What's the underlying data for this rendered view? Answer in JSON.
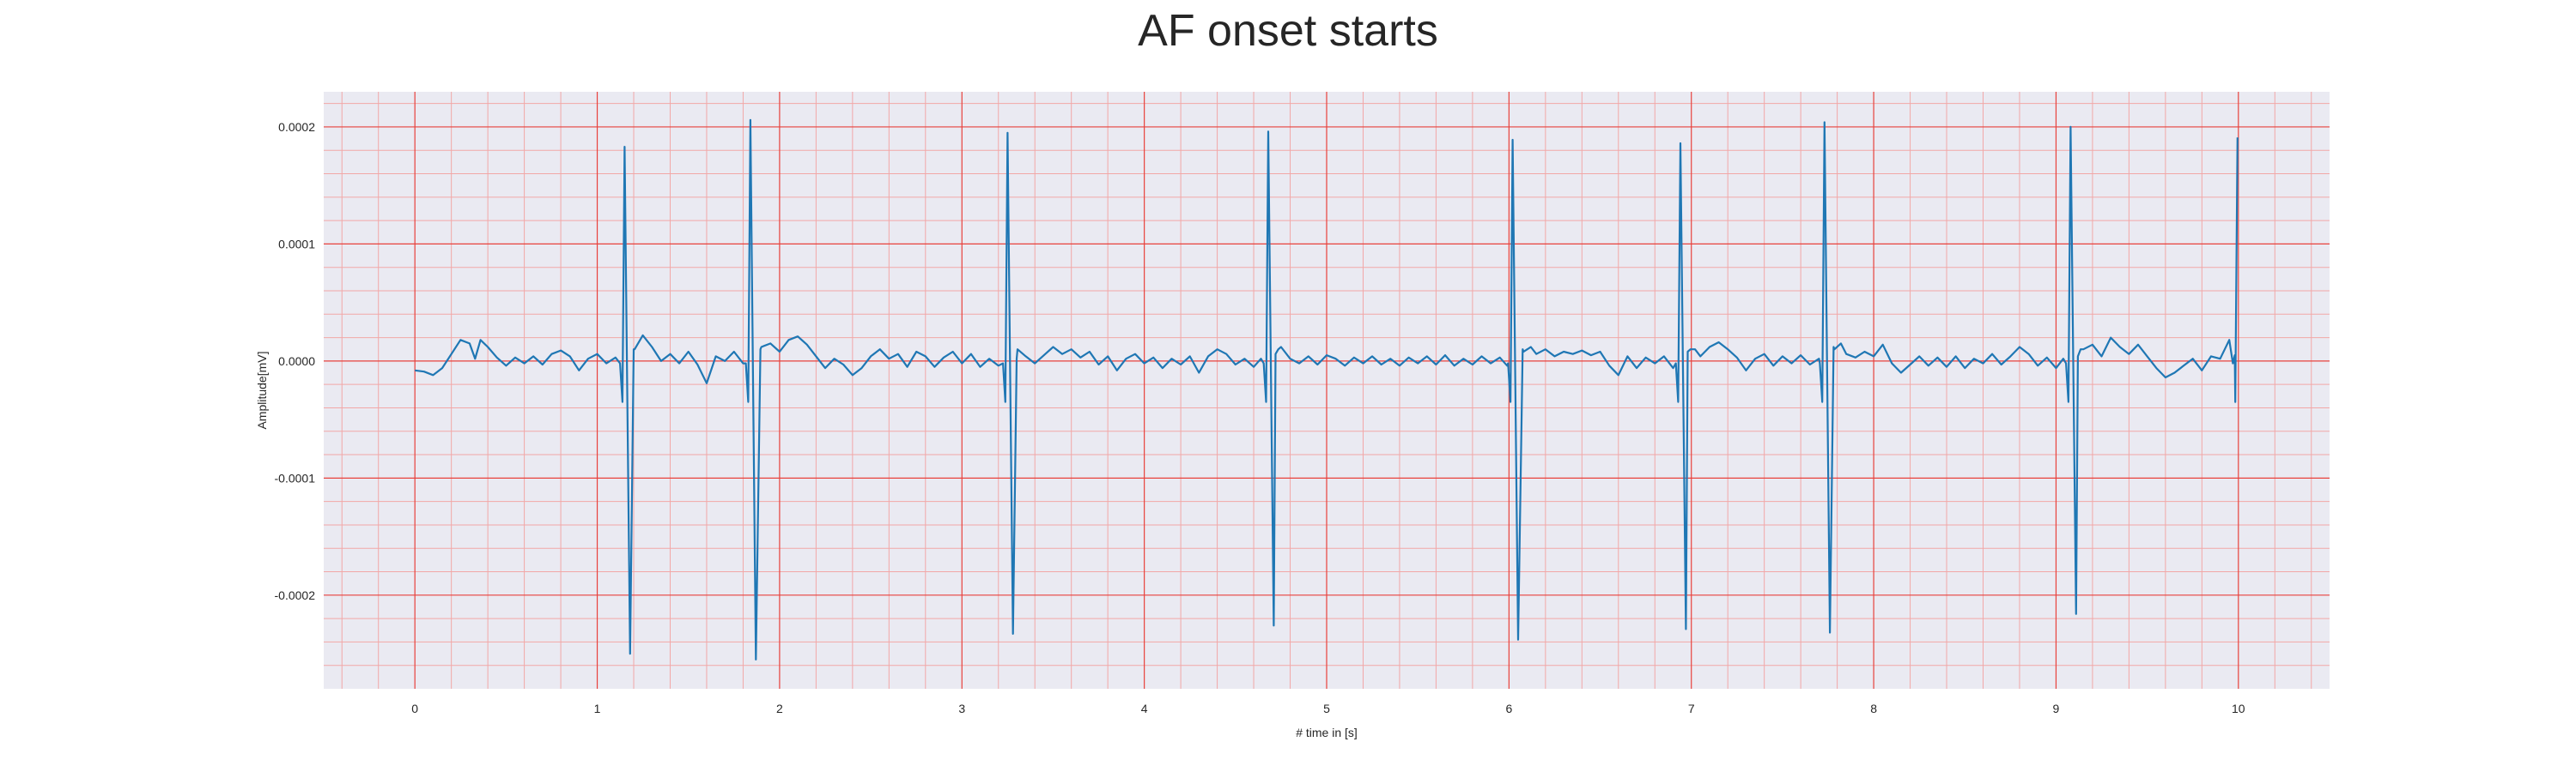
{
  "chart_data": {
    "type": "line",
    "title": "AF onset starts",
    "xlabel": "# time in [s]",
    "ylabel": "Amplitude[mV]",
    "xlim": [
      -0.5,
      10.5
    ],
    "ylim": [
      -0.00028,
      0.00023
    ],
    "xticks": [
      0,
      1,
      2,
      3,
      4,
      5,
      6,
      7,
      8,
      9,
      10
    ],
    "xtick_labels": [
      "0",
      "1",
      "2",
      "3",
      "4",
      "5",
      "6",
      "7",
      "8",
      "9",
      "10"
    ],
    "yticks": [
      -0.0002,
      -0.0001,
      0.0,
      0.0001,
      0.0002
    ],
    "ytick_labels": [
      "-0.0002",
      "-0.0001",
      "0.0000",
      "0.0001",
      "0.0002"
    ],
    "grid": true,
    "grid_major_color": "#e8413c",
    "grid_minor_color": "#f2a7a7",
    "background_color": "#eaeaf2",
    "line_color": "#1f77b4",
    "beats": [
      {
        "t": 1.15,
        "peak": 0.000183,
        "trough": -0.00025
      },
      {
        "t": 1.84,
        "peak": 0.000206,
        "trough": -0.000255
      },
      {
        "t": 3.25,
        "peak": 0.000195,
        "trough": -0.000233
      },
      {
        "t": 4.68,
        "peak": 0.000196,
        "trough": -0.000226
      },
      {
        "t": 6.02,
        "peak": 0.000189,
        "trough": -0.000238
      },
      {
        "t": 6.94,
        "peak": 0.000186,
        "trough": -0.000229
      },
      {
        "t": 7.73,
        "peak": 0.000204,
        "trough": -0.000232
      },
      {
        "t": 9.08,
        "peak": 0.0002,
        "trough": -0.000216
      },
      {
        "t": 9.995,
        "peak": 0.000191,
        "trough": -1e-05
      }
    ],
    "baseline": [
      [
        0.0,
        -8e-06
      ],
      [
        0.05,
        -9e-06
      ],
      [
        0.1,
        -1.2e-05
      ],
      [
        0.15,
        -6e-06
      ],
      [
        0.2,
        6e-06
      ],
      [
        0.25,
        1.8e-05
      ],
      [
        0.3,
        1.5e-05
      ],
      [
        0.33,
        2e-06
      ],
      [
        0.36,
        1.8e-05
      ],
      [
        0.4,
        1.2e-05
      ],
      [
        0.45,
        3e-06
      ],
      [
        0.5,
        -4e-06
      ],
      [
        0.55,
        3e-06
      ],
      [
        0.6,
        -2e-06
      ],
      [
        0.65,
        4e-06
      ],
      [
        0.7,
        -3e-06
      ],
      [
        0.75,
        6e-06
      ],
      [
        0.8,
        9e-06
      ],
      [
        0.85,
        4e-06
      ],
      [
        0.9,
        -8e-06
      ],
      [
        0.95,
        2e-06
      ],
      [
        1.0,
        6e-06
      ],
      [
        1.05,
        -2e-06
      ],
      [
        1.1,
        3e-06
      ],
      [
        1.2,
        1e-05
      ],
      [
        1.25,
        2.2e-05
      ],
      [
        1.3,
        1.2e-05
      ],
      [
        1.35,
        0.0
      ],
      [
        1.4,
        6e-06
      ],
      [
        1.45,
        -2e-06
      ],
      [
        1.5,
        8e-06
      ],
      [
        1.55,
        -3e-06
      ],
      [
        1.6,
        -1.9e-05
      ],
      [
        1.65,
        4e-06
      ],
      [
        1.7,
        0.0
      ],
      [
        1.75,
        8e-06
      ],
      [
        1.8,
        -2e-06
      ],
      [
        1.9,
        1.2e-05
      ],
      [
        1.95,
        1.5e-05
      ],
      [
        2.0,
        8e-06
      ],
      [
        2.05,
        1.8e-05
      ],
      [
        2.1,
        2.1e-05
      ],
      [
        2.15,
        1.4e-05
      ],
      [
        2.2,
        4e-06
      ],
      [
        2.25,
        -6e-06
      ],
      [
        2.3,
        2e-06
      ],
      [
        2.35,
        -3e-06
      ],
      [
        2.4,
        -1.2e-05
      ],
      [
        2.45,
        -6e-06
      ],
      [
        2.5,
        4e-06
      ],
      [
        2.55,
        1e-05
      ],
      [
        2.6,
        2e-06
      ],
      [
        2.65,
        6e-06
      ],
      [
        2.7,
        -5e-06
      ],
      [
        2.75,
        8e-06
      ],
      [
        2.8,
        4e-06
      ],
      [
        2.85,
        -5e-06
      ],
      [
        2.9,
        3e-06
      ],
      [
        2.95,
        8e-06
      ],
      [
        3.0,
        -2e-06
      ],
      [
        3.05,
        6e-06
      ],
      [
        3.1,
        -5e-06
      ],
      [
        3.15,
        2e-06
      ],
      [
        3.2,
        -4e-06
      ],
      [
        3.3,
        2e-06
      ],
      [
        3.35,
        4e-06
      ],
      [
        3.4,
        -2e-06
      ],
      [
        3.45,
        5e-06
      ],
      [
        3.5,
        1.2e-05
      ],
      [
        3.55,
        6e-06
      ],
      [
        3.6,
        1e-05
      ],
      [
        3.65,
        3e-06
      ],
      [
        3.7,
        8e-06
      ],
      [
        3.75,
        -3e-06
      ],
      [
        3.8,
        4e-06
      ],
      [
        3.85,
        -8e-06
      ],
      [
        3.9,
        2e-06
      ],
      [
        3.95,
        6e-06
      ],
      [
        4.0,
        -2e-06
      ],
      [
        4.05,
        3e-06
      ],
      [
        4.1,
        -6e-06
      ],
      [
        4.15,
        2e-06
      ],
      [
        4.2,
        -3e-06
      ],
      [
        4.25,
        4e-06
      ],
      [
        4.3,
        -1e-05
      ],
      [
        4.35,
        4e-06
      ],
      [
        4.4,
        1e-05
      ],
      [
        4.45,
        6e-06
      ],
      [
        4.5,
        -3e-06
      ],
      [
        4.55,
        2e-06
      ],
      [
        4.6,
        -5e-06
      ],
      [
        4.64,
        2e-06
      ],
      [
        4.72,
        6e-06
      ],
      [
        4.75,
        1.2e-05
      ],
      [
        4.8,
        2e-06
      ],
      [
        4.85,
        -2e-06
      ],
      [
        4.9,
        4e-06
      ],
      [
        4.95,
        -3e-06
      ],
      [
        5.0,
        5e-06
      ],
      [
        5.05,
        2e-06
      ],
      [
        5.1,
        -4e-06
      ],
      [
        5.15,
        3e-06
      ],
      [
        5.2,
        -2e-06
      ],
      [
        5.25,
        4e-06
      ],
      [
        5.3,
        -3e-06
      ],
      [
        5.35,
        2e-06
      ],
      [
        5.4,
        -4e-06
      ],
      [
        5.45,
        3e-06
      ],
      [
        5.5,
        -2e-06
      ],
      [
        5.55,
        4e-06
      ],
      [
        5.6,
        -3e-06
      ],
      [
        5.65,
        5e-06
      ],
      [
        5.7,
        -4e-06
      ],
      [
        5.75,
        2e-06
      ],
      [
        5.8,
        -3e-06
      ],
      [
        5.85,
        4e-06
      ],
      [
        5.9,
        -2e-06
      ],
      [
        5.95,
        3e-06
      ],
      [
        5.99,
        -4e-06
      ],
      [
        6.08,
        8e-06
      ],
      [
        6.12,
        1.2e-05
      ],
      [
        6.15,
        6e-06
      ],
      [
        6.2,
        1e-05
      ],
      [
        6.25,
        4e-06
      ],
      [
        6.3,
        8e-06
      ],
      [
        6.35,
        6e-06
      ],
      [
        6.4,
        9e-06
      ],
      [
        6.45,
        5e-06
      ],
      [
        6.5,
        8e-06
      ],
      [
        6.55,
        -4e-06
      ],
      [
        6.6,
        -1.2e-05
      ],
      [
        6.65,
        4e-06
      ],
      [
        6.7,
        -6e-06
      ],
      [
        6.75,
        3e-06
      ],
      [
        6.8,
        -2e-06
      ],
      [
        6.85,
        4e-06
      ],
      [
        6.9,
        -6e-06
      ],
      [
        6.98,
        8e-06
      ],
      [
        7.02,
        1e-05
      ],
      [
        7.05,
        4e-06
      ],
      [
        7.1,
        1.2e-05
      ],
      [
        7.15,
        1.6e-05
      ],
      [
        7.2,
        1e-05
      ],
      [
        7.25,
        3e-06
      ],
      [
        7.3,
        -8e-06
      ],
      [
        7.35,
        2e-06
      ],
      [
        7.4,
        6e-06
      ],
      [
        7.45,
        -4e-06
      ],
      [
        7.5,
        4e-06
      ],
      [
        7.55,
        -2e-06
      ],
      [
        7.6,
        5e-06
      ],
      [
        7.65,
        -3e-06
      ],
      [
        7.7,
        2e-06
      ],
      [
        7.78,
        1.2e-05
      ],
      [
        7.82,
        1.5e-05
      ],
      [
        7.85,
        6e-06
      ],
      [
        7.9,
        3e-06
      ],
      [
        7.95,
        8e-06
      ],
      [
        8.0,
        4e-06
      ],
      [
        8.05,
        1.4e-05
      ],
      [
        8.1,
        -2e-06
      ],
      [
        8.15,
        -1e-05
      ],
      [
        8.2,
        -3e-06
      ],
      [
        8.25,
        4e-06
      ],
      [
        8.3,
        -4e-06
      ],
      [
        8.35,
        3e-06
      ],
      [
        8.4,
        -5e-06
      ],
      [
        8.45,
        4e-06
      ],
      [
        8.5,
        -6e-06
      ],
      [
        8.55,
        2e-06
      ],
      [
        8.6,
        -2e-06
      ],
      [
        8.65,
        6e-06
      ],
      [
        8.7,
        -3e-06
      ],
      [
        8.75,
        4e-06
      ],
      [
        8.8,
        1.2e-05
      ],
      [
        8.85,
        6e-06
      ],
      [
        8.9,
        -4e-06
      ],
      [
        8.95,
        3e-06
      ],
      [
        9.0,
        -6e-06
      ],
      [
        9.04,
        2e-06
      ],
      [
        9.12,
        4e-06
      ],
      [
        9.15,
        1e-05
      ],
      [
        9.2,
        1.4e-05
      ],
      [
        9.25,
        4e-06
      ],
      [
        9.3,
        2e-05
      ],
      [
        9.35,
        1.2e-05
      ],
      [
        9.4,
        6e-06
      ],
      [
        9.45,
        1.4e-05
      ],
      [
        9.5,
        4e-06
      ],
      [
        9.55,
        -6e-06
      ],
      [
        9.6,
        -1.4e-05
      ],
      [
        9.65,
        -1e-05
      ],
      [
        9.7,
        -4e-06
      ],
      [
        9.75,
        2e-06
      ],
      [
        9.8,
        -8e-06
      ],
      [
        9.85,
        4e-06
      ],
      [
        9.9,
        2e-06
      ],
      [
        9.95,
        1.8e-05
      ],
      [
        9.98,
        5e-06
      ]
    ]
  }
}
